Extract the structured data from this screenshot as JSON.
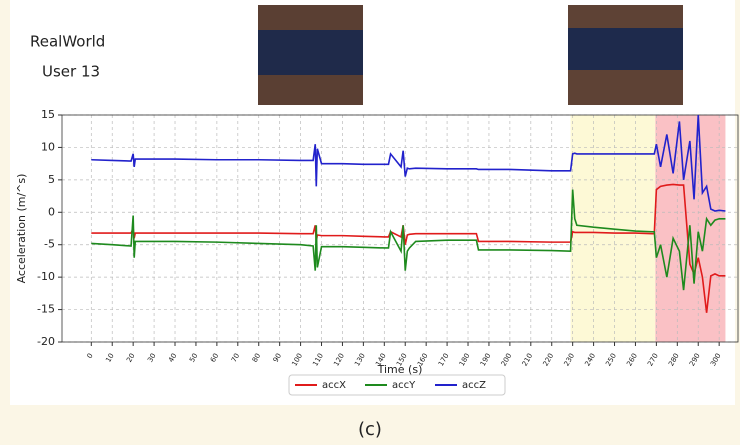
{
  "chart_data": {
    "type": "line",
    "header": [
      "RealWorld",
      "User 13"
    ],
    "caption": "(c)",
    "xlabel": "Time (s)",
    "ylabel": "Acceleration (m/^s)",
    "xlim": [
      -14,
      309
    ],
    "ylim": [
      -20,
      15
    ],
    "xticks": [
      0,
      10,
      20,
      30,
      40,
      50,
      60,
      70,
      80,
      90,
      100,
      110,
      120,
      130,
      140,
      150,
      160,
      170,
      180,
      190,
      200,
      210,
      220,
      230,
      240,
      250,
      260,
      270,
      280,
      290,
      300
    ],
    "yticks": [
      -20,
      -15,
      -10,
      -5,
      0,
      5,
      10,
      15
    ],
    "grid": true,
    "legend": "bottom",
    "shaded_regions": [
      {
        "start": 229,
        "end": 269.5,
        "color": "#fdf8cf"
      },
      {
        "start": 269.5,
        "end": 303,
        "color": "#f9b6bb"
      }
    ],
    "x": [
      0,
      10,
      19,
      20,
      20.5,
      21,
      40,
      60,
      80,
      100,
      106,
      107,
      107.5,
      108,
      110,
      120,
      130,
      140,
      142,
      143,
      148,
      149,
      150,
      151,
      152,
      155,
      170,
      184,
      185,
      200,
      220,
      229,
      230,
      231,
      232,
      240,
      250,
      260,
      268,
      269,
      270,
      272,
      275,
      278,
      281,
      283,
      286,
      288,
      290,
      292,
      294,
      296,
      298,
      300,
      303
    ],
    "series": [
      {
        "name": "accX",
        "color": "#e01b1b",
        "values": [
          -3.2,
          -3.2,
          -3.2,
          -2.5,
          -4,
          -3.2,
          -3.2,
          -3.2,
          -3.2,
          -3.3,
          -3.3,
          -2,
          -4.5,
          -3.5,
          -3.6,
          -3.6,
          -3.7,
          -3.8,
          -3.8,
          -3,
          -3.8,
          -2,
          -5,
          -3.5,
          -3.4,
          -3.3,
          -3.3,
          -3.3,
          -4.5,
          -4.5,
          -4.6,
          -4.6,
          -3,
          -3.1,
          -3.1,
          -3.1,
          -3.2,
          -3.2,
          -3.3,
          -3.3,
          3.5,
          4,
          4.2,
          4.3,
          4.2,
          4.2,
          -8,
          -9.5,
          -7,
          -10,
          -15.5,
          -9.8,
          -9.5,
          -9.8,
          -9.8
        ]
      },
      {
        "name": "accY",
        "color": "#1e8a1e",
        "values": [
          -4.8,
          -5,
          -5.2,
          -0.5,
          -7,
          -4.5,
          -4.5,
          -4.6,
          -4.8,
          -5,
          -5.2,
          -9,
          -2,
          -8.5,
          -5.3,
          -5.3,
          -5.4,
          -5.5,
          -5.5,
          -3,
          -6,
          -2,
          -9,
          -6,
          -5.5,
          -4.5,
          -4.3,
          -4.3,
          -5.8,
          -5.8,
          -5.9,
          -6,
          3.5,
          -1,
          -2,
          -2.3,
          -2.6,
          -2.9,
          -3,
          -3,
          -7,
          -5,
          -10,
          -4,
          -6,
          -12,
          -2,
          -11,
          -3,
          -6,
          -1,
          -2,
          -1.2,
          -1,
          -1
        ]
      },
      {
        "name": "accZ",
        "color": "#2222cc",
        "values": [
          8.1,
          8,
          7.9,
          9,
          7,
          8.2,
          8.2,
          8.1,
          8.1,
          8,
          8,
          10.5,
          4,
          9.8,
          7.5,
          7.5,
          7.4,
          7.4,
          7.4,
          9,
          7,
          9.5,
          5.5,
          6.8,
          6.7,
          6.8,
          6.7,
          6.7,
          6.6,
          6.6,
          6.4,
          6.4,
          9,
          9.1,
          9,
          9,
          9,
          9,
          9,
          9,
          10.5,
          7,
          12,
          6,
          14,
          5,
          11,
          2,
          15,
          3,
          4,
          0.5,
          0.2,
          0.3,
          0.2
        ]
      }
    ]
  }
}
